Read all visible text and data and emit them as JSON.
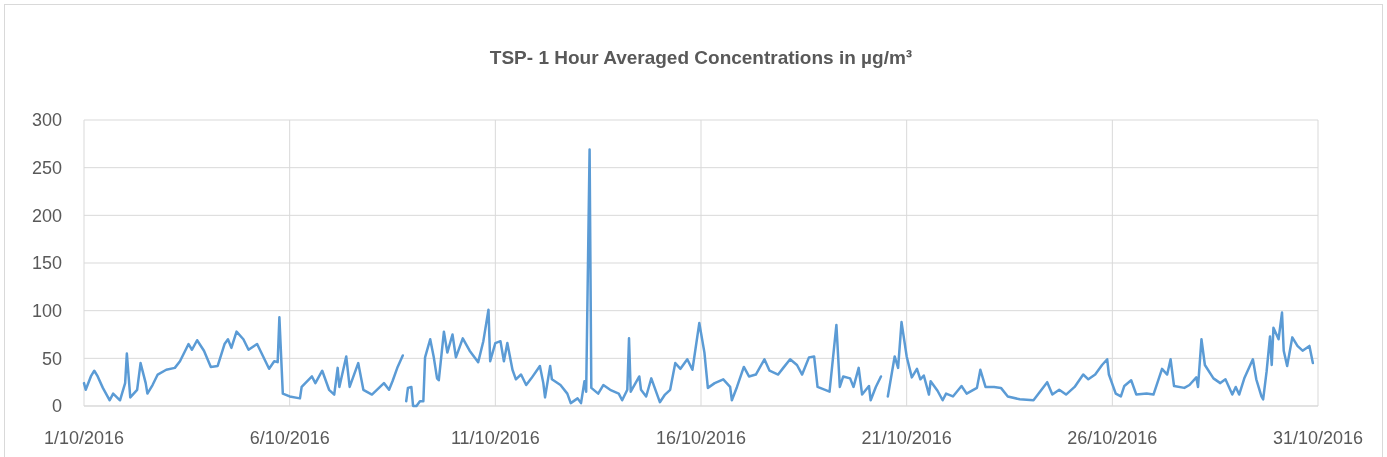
{
  "chart_data": {
    "type": "line",
    "title": "TSP- 1 Hour Averaged Concentrations in µg/m³",
    "x": [
      "2016-10-01T00:00",
      "2016-10-01T01:00",
      "2016-10-01T04:00",
      "2016-10-01T06:00",
      "2016-10-01T08:00",
      "2016-10-01T11:00",
      "2016-10-01T15:00",
      "2016-10-01T17:00",
      "2016-10-01T21:00",
      "2016-10-02T00:00",
      "2016-10-02T01:00",
      "2016-10-02T03:00",
      "2016-10-02T07:00",
      "2016-10-02T09:00",
      "2016-10-02T12:00",
      "2016-10-02T13:00",
      "2016-10-02T16:00",
      "2016-10-02T19:00",
      "2016-10-03T00:00",
      "2016-10-03T05:00",
      "2016-10-03T08:00",
      "2016-10-03T13:00",
      "2016-10-03T15:00",
      "2016-10-03T18:00",
      "2016-10-03T22:00",
      "2016-10-04T02:00",
      "2016-10-04T06:00",
      "2016-10-04T10:00",
      "2016-10-04T12:00",
      "2016-10-04T14:00",
      "2016-10-04T17:00",
      "2016-10-04T21:00",
      "2016-10-05T00:00",
      "2016-10-05T05:00",
      "2016-10-05T12:00",
      "2016-10-05T15:00",
      "2016-10-05T17:00",
      "2016-10-05T18:00",
      "2016-10-05T20:00",
      "2016-10-06T00:00",
      "2016-10-06T06:00",
      "2016-10-06T07:00",
      "2016-10-06T13:00",
      "2016-10-06T15:00",
      "2016-10-06T19:00",
      "2016-10-06T23:00",
      "2016-10-07T02:00",
      "2016-10-07T04:00",
      "2016-10-07T05:00",
      "2016-10-07T09:00",
      "2016-10-07T11:00",
      "2016-10-07T16:00",
      "2016-10-07T19:00",
      "2016-10-08T00:00",
      "2016-10-08T07:00",
      "2016-10-08T10:00",
      "2016-10-08T12:00",
      "2016-10-08T15:00",
      "2016-10-08T18:00",
      "2016-10-08T19:00",
      "2016-10-08T20:00",
      "2016-10-08T21:00",
      "2016-10-08T23:00",
      "2016-10-09T00:00",
      "2016-10-09T02:00",
      "2016-10-09T04:00",
      "2016-10-09T06:00",
      "2016-10-09T07:00",
      "2016-10-09T10:00",
      "2016-10-09T12:00",
      "2016-10-09T14:00",
      "2016-10-09T15:00",
      "2016-10-09T18:00",
      "2016-10-09T20:00",
      "2016-10-09T23:00",
      "2016-10-10T01:00",
      "2016-10-10T05:00",
      "2016-10-10T09:00",
      "2016-10-10T14:00",
      "2016-10-10T17:00",
      "2016-10-10T20:00",
      "2016-10-10T21:00",
      "2016-10-11T00:00",
      "2016-10-11T03:00",
      "2016-10-11T05:00",
      "2016-10-11T07:00",
      "2016-10-11T10:00",
      "2016-10-11T12:00",
      "2016-10-11T15:00",
      "2016-10-11T18:00",
      "2016-10-11T21:00",
      "2016-10-12T02:00",
      "2016-10-12T04:00",
      "2016-10-12T05:00",
      "2016-10-12T08:00",
      "2016-10-12T09:00",
      "2016-10-12T14:00",
      "2016-10-12T18:00",
      "2016-10-12T20:00",
      "2016-10-13T00:00",
      "2016-10-13T02:00",
      "2016-10-13T04:00",
      "2016-10-13T05:00",
      "2016-10-13T07:00",
      "2016-10-13T08:00",
      "2016-10-13T12:00",
      "2016-10-13T15:00",
      "2016-10-13T19:00",
      "2016-10-14T00:00",
      "2016-10-14T02:00",
      "2016-10-14T05:00",
      "2016-10-14T06:00",
      "2016-10-14T07:00",
      "2016-10-14T12:00",
      "2016-10-14T13:00",
      "2016-10-14T16:00",
      "2016-10-14T19:00",
      "2016-10-15T00:00",
      "2016-10-15T03:00",
      "2016-10-15T06:00",
      "2016-10-15T09:00",
      "2016-10-15T12:00",
      "2016-10-15T16:00",
      "2016-10-15T19:00",
      "2016-10-15T23:00",
      "2016-10-16T02:00",
      "2016-10-16T04:00",
      "2016-10-16T08:00",
      "2016-10-16T13:00",
      "2016-10-16T17:00",
      "2016-10-16T18:00",
      "2016-10-16T21:00",
      "2016-10-17T01:00",
      "2016-10-17T04:00",
      "2016-10-17T08:00",
      "2016-10-17T13:00",
      "2016-10-17T16:00",
      "2016-10-17T21:00",
      "2016-10-18T00:00",
      "2016-10-18T04:00",
      "2016-10-18T08:00",
      "2016-10-18T11:00",
      "2016-10-18T15:00",
      "2016-10-18T18:00",
      "2016-10-18T20:00",
      "2016-10-19T03:00",
      "2016-10-19T07:00",
      "2016-10-19T09:00",
      "2016-10-19T11:00",
      "2016-10-19T15:00",
      "2016-10-19T17:00",
      "2016-10-19T20:00",
      "2016-10-19T22:00",
      "2016-10-20T02:00",
      "2016-10-20T03:00",
      "2016-10-20T06:00",
      "2016-10-20T09:00",
      "2016-10-20T11:00",
      "2016-10-20T13:00",
      "2016-10-20T17:00",
      "2016-10-20T19:00",
      "2016-10-20T21:00",
      "2016-10-21T00:00",
      "2016-10-21T03:00",
      "2016-10-21T06:00",
      "2016-10-21T08:00",
      "2016-10-21T10:00",
      "2016-10-21T13:00",
      "2016-10-21T14:00",
      "2016-10-21T18:00",
      "2016-10-21T21:00",
      "2016-10-21T23:00",
      "2016-10-22T03:00",
      "2016-10-22T08:00",
      "2016-10-22T11:00",
      "2016-10-22T17:00",
      "2016-10-22T19:00",
      "2016-10-22T22:00",
      "2016-10-23T03:00",
      "2016-10-23T07:00",
      "2016-10-23T11:00",
      "2016-10-23T18:00",
      "2016-10-24T02:00",
      "2016-10-24T05:00",
      "2016-10-24T10:00",
      "2016-10-24T13:00",
      "2016-10-24T17:00",
      "2016-10-24T21:00",
      "2016-10-25T02:00",
      "2016-10-25T07:00",
      "2016-10-25T10:00",
      "2016-10-25T14:00",
      "2016-10-25T18:00",
      "2016-10-25T21:00",
      "2016-10-25T22:00",
      "2016-10-26T02:00",
      "2016-10-26T05:00",
      "2016-10-26T07:00",
      "2016-10-26T11:00",
      "2016-10-26T14:00",
      "2016-10-26T20:00",
      "2016-10-27T00:00",
      "2016-10-27T05:00",
      "2016-10-27T08:00",
      "2016-10-27T10:00",
      "2016-10-27T12:00",
      "2016-10-27T18:00",
      "2016-10-27T21:00",
      "2016-10-28T01:00",
      "2016-10-28T02:00",
      "2016-10-28T04:00",
      "2016-10-28T06:00",
      "2016-10-28T11:00",
      "2016-10-28T15:00",
      "2016-10-28T18:00",
      "2016-10-28T22:00",
      "2016-10-29T00:00",
      "2016-10-29T02:00",
      "2016-10-29T05:00",
      "2016-10-29T10:00",
      "2016-10-29T12:00",
      "2016-10-29T15:00",
      "2016-10-29T16:00",
      "2016-10-29T18:00",
      "2016-10-29T20:00",
      "2016-10-29T21:00",
      "2016-10-29T22:00",
      "2016-10-30T01:00",
      "2016-10-30T03:00",
      "2016-10-30T04:00",
      "2016-10-30T06:00",
      "2016-10-30T09:00",
      "2016-10-30T12:00",
      "2016-10-30T15:00",
      "2016-10-30T19:00",
      "2016-10-30T21:00"
    ],
    "series": [
      {
        "color": "#5b9bd5",
        "values": [
          24,
          17,
          31,
          37,
          31,
          19,
          6,
          13,
          6,
          24,
          55,
          9,
          17,
          45,
          24,
          13,
          22,
          33,
          38,
          40,
          47,
          65,
          59,
          69,
          58,
          41,
          42,
          65,
          70,
          61,
          78,
          70,
          59,
          65,
          39,
          47,
          46,
          93,
          13,
          10,
          8,
          20,
          31,
          24,
          37,
          17,
          12,
          40,
          20,
          52,
          20,
          45,
          17,
          12,
          24,
          17,
          26,
          41,
          53,
          null,
          5,
          19,
          20,
          0,
          0,
          5,
          5,
          51,
          70,
          52,
          29,
          27,
          78,
          56,
          75,
          51,
          71,
          58,
          46,
          68,
          101,
          47,
          66,
          68,
          47,
          66,
          38,
          28,
          33,
          22,
          29,
          42,
          24,
          9,
          42,
          28,
          22,
          13,
          3,
          8,
          3,
          26,
          15,
          269,
          19,
          13,
          22,
          17,
          13,
          6,
          17,
          71,
          15,
          31,
          17,
          10,
          29,
          4,
          12,
          17,
          45,
          39,
          49,
          38,
          87,
          56,
          19,
          24,
          28,
          20,
          6,
          20,
          41,
          31,
          33,
          49,
          37,
          33,
          40,
          49,
          43,
          33,
          51,
          52,
          20,
          15,
          85,
          20,
          31,
          29,
          20,
          40,
          12,
          21,
          6,
          20,
          31,
          null,
          10,
          52,
          40,
          88,
          52,
          30,
          39,
          28,
          32,
          12,
          26,
          16,
          6,
          13,
          10,
          21,
          13,
          19,
          38,
          20,
          20,
          19,
          10,
          7,
          6,
          13,
          25,
          12,
          17,
          12,
          20,
          33,
          28,
          33,
          43,
          49,
          33,
          13,
          10,
          21,
          27,
          12,
          13,
          12,
          39,
          33,
          49,
          21,
          19,
          22,
          30,
          20,
          70,
          43,
          29,
          24,
          28,
          12,
          20,
          12,
          29,
          49,
          28,
          10,
          7,
          36,
          73,
          43,
          82,
          70,
          98,
          58,
          42,
          72,
          63,
          58,
          63,
          45
        ]
      }
    ],
    "xlim": [
      "2016-10-01",
      "2016-10-31"
    ],
    "xticks": [
      {
        "value": "2016-10-01",
        "label": "1/10/2016"
      },
      {
        "value": "2016-10-06",
        "label": "6/10/2016"
      },
      {
        "value": "2016-10-11",
        "label": "11/10/2016"
      },
      {
        "value": "2016-10-16",
        "label": "16/10/2016"
      },
      {
        "value": "2016-10-21",
        "label": "21/10/2016"
      },
      {
        "value": "2016-10-26",
        "label": "26/10/2016"
      },
      {
        "value": "2016-10-31",
        "label": "31/10/2016"
      }
    ],
    "ylim": [
      0,
      300
    ],
    "yticks": [
      0,
      50,
      100,
      150,
      200,
      250,
      300
    ],
    "grid": true
  }
}
